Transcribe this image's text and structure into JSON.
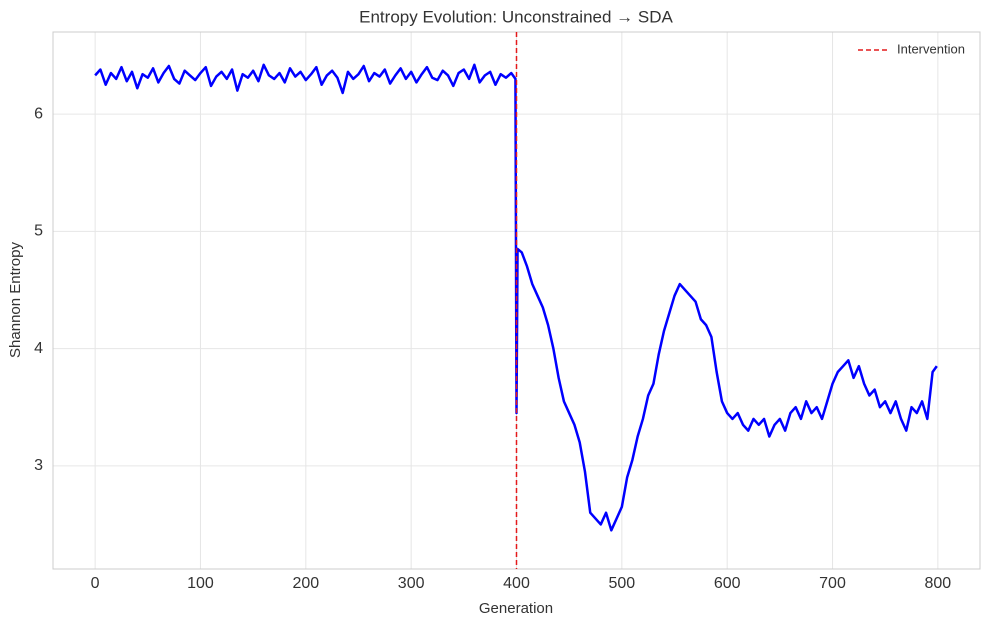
{
  "chart_data": {
    "type": "line",
    "title": "Entropy Evolution: Unconstrained → SDA",
    "x_label": "Generation",
    "y_label": "Shannon Entropy",
    "xlim": [
      -40,
      840
    ],
    "ylim": [
      2.12,
      6.7
    ],
    "xticks": [
      0,
      100,
      200,
      300,
      400,
      500,
      600,
      700,
      800
    ],
    "yticks": [
      3,
      4,
      5,
      6
    ],
    "grid": true,
    "legend": "upper right",
    "vline": {
      "x": 400,
      "name": "Intervention",
      "color": "#e41a1c"
    },
    "series": [
      {
        "color": "#0000ff",
        "x": [
          0,
          5,
          10,
          15,
          20,
          25,
          30,
          35,
          40,
          45,
          50,
          55,
          60,
          65,
          70,
          75,
          80,
          85,
          90,
          95,
          100,
          105,
          110,
          115,
          120,
          125,
          130,
          135,
          140,
          145,
          150,
          155,
          160,
          165,
          170,
          175,
          180,
          185,
          190,
          195,
          200,
          205,
          210,
          215,
          220,
          225,
          230,
          235,
          240,
          245,
          250,
          255,
          260,
          265,
          270,
          275,
          280,
          285,
          290,
          295,
          300,
          305,
          310,
          315,
          320,
          325,
          330,
          335,
          340,
          345,
          350,
          355,
          360,
          365,
          370,
          375,
          380,
          385,
          390,
          395,
          399,
          400,
          401,
          405,
          410,
          415,
          420,
          425,
          430,
          435,
          440,
          445,
          450,
          455,
          460,
          465,
          470,
          475,
          480,
          485,
          490,
          495,
          500,
          505,
          510,
          515,
          520,
          525,
          530,
          535,
          540,
          545,
          550,
          555,
          560,
          565,
          570,
          575,
          580,
          585,
          590,
          595,
          600,
          605,
          610,
          615,
          620,
          625,
          630,
          635,
          640,
          645,
          650,
          655,
          660,
          665,
          670,
          675,
          680,
          685,
          690,
          695,
          700,
          705,
          710,
          715,
          720,
          725,
          730,
          735,
          740,
          745,
          750,
          755,
          760,
          765,
          770,
          775,
          780,
          785,
          790,
          795,
          799
        ],
        "values": [
          6.33,
          6.38,
          6.25,
          6.35,
          6.3,
          6.4,
          6.28,
          6.36,
          6.22,
          6.34,
          6.31,
          6.39,
          6.27,
          6.35,
          6.41,
          6.3,
          6.26,
          6.37,
          6.33,
          6.29,
          6.35,
          6.4,
          6.24,
          6.32,
          6.36,
          6.3,
          6.38,
          6.2,
          6.34,
          6.31,
          6.37,
          6.28,
          6.42,
          6.33,
          6.3,
          6.35,
          6.27,
          6.39,
          6.32,
          6.36,
          6.29,
          6.34,
          6.4,
          6.25,
          6.33,
          6.37,
          6.31,
          6.18,
          6.36,
          6.3,
          6.34,
          6.41,
          6.28,
          6.35,
          6.32,
          6.38,
          6.26,
          6.33,
          6.39,
          6.3,
          6.36,
          6.27,
          6.34,
          6.4,
          6.31,
          6.29,
          6.37,
          6.33,
          6.24,
          6.35,
          6.38,
          6.3,
          6.42,
          6.27,
          6.33,
          6.36,
          6.25,
          6.34,
          6.31,
          6.35,
          6.3,
          3.45,
          4.85,
          4.82,
          4.7,
          4.55,
          4.45,
          4.35,
          4.2,
          4.0,
          3.75,
          3.55,
          3.45,
          3.35,
          3.2,
          2.95,
          2.6,
          2.55,
          2.5,
          2.6,
          2.45,
          2.55,
          2.65,
          2.9,
          3.05,
          3.25,
          3.4,
          3.6,
          3.7,
          3.95,
          4.15,
          4.3,
          4.45,
          4.55,
          4.5,
          4.45,
          4.4,
          4.25,
          4.2,
          4.1,
          3.8,
          3.55,
          3.45,
          3.4,
          3.45,
          3.35,
          3.3,
          3.4,
          3.35,
          3.4,
          3.25,
          3.35,
          3.4,
          3.3,
          3.45,
          3.5,
          3.4,
          3.55,
          3.45,
          3.5,
          3.4,
          3.55,
          3.7,
          3.8,
          3.85,
          3.9,
          3.75,
          3.85,
          3.7,
          3.6,
          3.65,
          3.5,
          3.55,
          3.45,
          3.55,
          3.4,
          3.3,
          3.5,
          3.45,
          3.55,
          3.4,
          3.8,
          3.85
        ]
      }
    ]
  }
}
